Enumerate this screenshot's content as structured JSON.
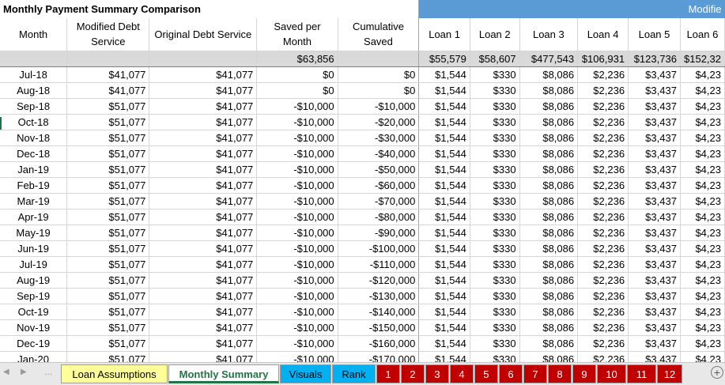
{
  "title": "Monthly Payment Summary Comparison",
  "modified_banner": "Modifie",
  "headers": {
    "month": "Month",
    "modified": "Modified Debt Service",
    "original": "Original Debt Service",
    "saved": "Saved per Month",
    "cumulative": "Cumulative Saved",
    "loans": [
      "Loan 1",
      "Loan 2",
      "Loan 3",
      "Loan 4",
      "Loan 5",
      "Loan 6"
    ]
  },
  "totals": {
    "saved": "$63,856",
    "loans": [
      "$55,579",
      "$58,607",
      "$477,543",
      "$106,931",
      "$123,736",
      "$152,32"
    ]
  },
  "rows": [
    [
      "Jul-18",
      "$41,077",
      "$41,077",
      "$0",
      "$0",
      "$1,544",
      "$330",
      "$8,086",
      "$2,236",
      "$3,437",
      "$4,23"
    ],
    [
      "Aug-18",
      "$41,077",
      "$41,077",
      "$0",
      "$0",
      "$1,544",
      "$330",
      "$8,086",
      "$2,236",
      "$3,437",
      "$4,23"
    ],
    [
      "Sep-18",
      "$51,077",
      "$41,077",
      "-$10,000",
      "-$10,000",
      "$1,544",
      "$330",
      "$8,086",
      "$2,236",
      "$3,437",
      "$4,23"
    ],
    [
      "Oct-18",
      "$51,077",
      "$41,077",
      "-$10,000",
      "-$20,000",
      "$1,544",
      "$330",
      "$8,086",
      "$2,236",
      "$3,437",
      "$4,23"
    ],
    [
      "Nov-18",
      "$51,077",
      "$41,077",
      "-$10,000",
      "-$30,000",
      "$1,544",
      "$330",
      "$8,086",
      "$2,236",
      "$3,437",
      "$4,23"
    ],
    [
      "Dec-18",
      "$51,077",
      "$41,077",
      "-$10,000",
      "-$40,000",
      "$1,544",
      "$330",
      "$8,086",
      "$2,236",
      "$3,437",
      "$4,23"
    ],
    [
      "Jan-19",
      "$51,077",
      "$41,077",
      "-$10,000",
      "-$50,000",
      "$1,544",
      "$330",
      "$8,086",
      "$2,236",
      "$3,437",
      "$4,23"
    ],
    [
      "Feb-19",
      "$51,077",
      "$41,077",
      "-$10,000",
      "-$60,000",
      "$1,544",
      "$330",
      "$8,086",
      "$2,236",
      "$3,437",
      "$4,23"
    ],
    [
      "Mar-19",
      "$51,077",
      "$41,077",
      "-$10,000",
      "-$70,000",
      "$1,544",
      "$330",
      "$8,086",
      "$2,236",
      "$3,437",
      "$4,23"
    ],
    [
      "Apr-19",
      "$51,077",
      "$41,077",
      "-$10,000",
      "-$80,000",
      "$1,544",
      "$330",
      "$8,086",
      "$2,236",
      "$3,437",
      "$4,23"
    ],
    [
      "May-19",
      "$51,077",
      "$41,077",
      "-$10,000",
      "-$90,000",
      "$1,544",
      "$330",
      "$8,086",
      "$2,236",
      "$3,437",
      "$4,23"
    ],
    [
      "Jun-19",
      "$51,077",
      "$41,077",
      "-$10,000",
      "-$100,000",
      "$1,544",
      "$330",
      "$8,086",
      "$2,236",
      "$3,437",
      "$4,23"
    ],
    [
      "Jul-19",
      "$51,077",
      "$41,077",
      "-$10,000",
      "-$110,000",
      "$1,544",
      "$330",
      "$8,086",
      "$2,236",
      "$3,437",
      "$4,23"
    ],
    [
      "Aug-19",
      "$51,077",
      "$41,077",
      "-$10,000",
      "-$120,000",
      "$1,544",
      "$330",
      "$8,086",
      "$2,236",
      "$3,437",
      "$4,23"
    ],
    [
      "Sep-19",
      "$51,077",
      "$41,077",
      "-$10,000",
      "-$130,000",
      "$1,544",
      "$330",
      "$8,086",
      "$2,236",
      "$3,437",
      "$4,23"
    ],
    [
      "Oct-19",
      "$51,077",
      "$41,077",
      "-$10,000",
      "-$140,000",
      "$1,544",
      "$330",
      "$8,086",
      "$2,236",
      "$3,437",
      "$4,23"
    ],
    [
      "Nov-19",
      "$51,077",
      "$41,077",
      "-$10,000",
      "-$150,000",
      "$1,544",
      "$330",
      "$8,086",
      "$2,236",
      "$3,437",
      "$4,23"
    ],
    [
      "Dec-19",
      "$51,077",
      "$41,077",
      "-$10,000",
      "-$160,000",
      "$1,544",
      "$330",
      "$8,086",
      "$2,236",
      "$3,437",
      "$4,23"
    ],
    [
      "Jan-20",
      "$51,077",
      "$41,077",
      "-$10,000",
      "-$170,000",
      "$1,544",
      "$330",
      "$8,086",
      "$2,236",
      "$3,437",
      "$4,23"
    ]
  ],
  "tabs": {
    "loan_assumptions": "Loan Assumptions",
    "monthly_summary": "Monthly Summary",
    "visuals": "Visuals",
    "rank": "Rank",
    "numbered": [
      "1",
      "2",
      "3",
      "4",
      "5",
      "6",
      "7",
      "8",
      "9",
      "10",
      "11",
      "12"
    ]
  },
  "nav": {
    "dots": "...",
    "add": "+"
  },
  "colors": {
    "banner": "#5b9bd5",
    "total_row": "#d9d9d9",
    "tab_yellow": "#ffff99",
    "tab_cyan": "#00b0f0",
    "tab_red": "#c00000",
    "excel_green": "#217346"
  }
}
